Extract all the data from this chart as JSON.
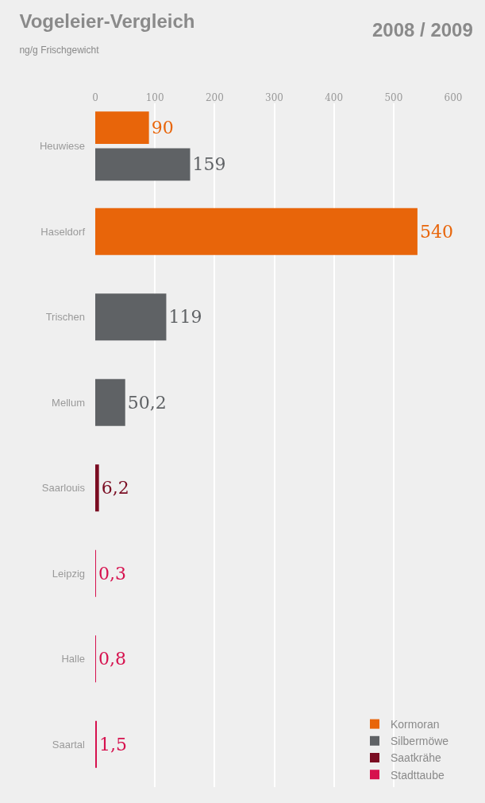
{
  "chart_data": {
    "type": "bar",
    "orientation": "horizontal",
    "title": "Vogeleier-Vergleich",
    "subtitle": "ng/g Frischgewicht",
    "annotations": [
      "2008 / 2009"
    ],
    "categories": [
      "Heuwiese",
      "Haseldorf",
      "Trischen",
      "Mellum",
      "Saarlouis",
      "Leipzig",
      "Halle",
      "Saartal"
    ],
    "series": [
      {
        "name": "Kormoran",
        "color": "#e8650a",
        "values": [
          90,
          540,
          null,
          null,
          null,
          null,
          null,
          null
        ],
        "value_labels": [
          "90",
          "540",
          null,
          null,
          null,
          null,
          null,
          null
        ]
      },
      {
        "name": "Silbermöwe",
        "color": "#5f6265",
        "values": [
          159,
          null,
          119,
          50.2,
          null,
          null,
          null,
          null
        ],
        "value_labels": [
          "159",
          null,
          "119",
          "50,2",
          null,
          null,
          null,
          null
        ]
      },
      {
        "name": "Saatkrähe",
        "color": "#7a0c22",
        "values": [
          null,
          null,
          null,
          null,
          6.2,
          null,
          null,
          null
        ],
        "value_labels": [
          null,
          null,
          null,
          null,
          "6,2",
          null,
          null,
          null
        ]
      },
      {
        "name": "Stadttaube",
        "color": "#d6114e",
        "values": [
          null,
          null,
          null,
          null,
          null,
          0.3,
          0.8,
          1.5
        ],
        "value_labels": [
          null,
          null,
          null,
          null,
          null,
          "0,3",
          "0,8",
          "1,5"
        ]
      }
    ],
    "xlim": [
      0,
      600
    ],
    "xticks": [
      0,
      100,
      200,
      300,
      400,
      500,
      600
    ],
    "grid": "x",
    "legend": "bottom right"
  }
}
